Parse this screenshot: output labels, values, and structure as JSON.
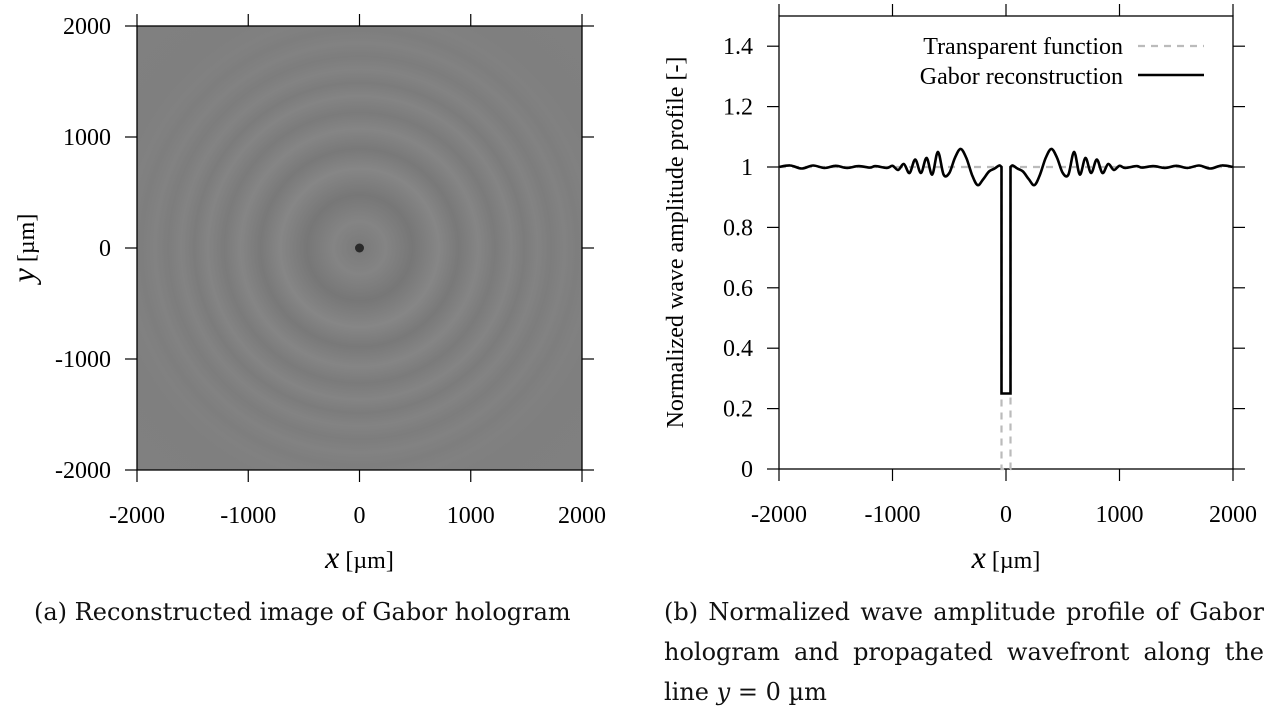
{
  "chart_data": [
    {
      "type": "heatmap",
      "xlabel_var": "x",
      "xlabel_unit": "[µm]",
      "ylabel_var": "y",
      "ylabel_unit": "[µm]",
      "xlim": [
        -2000,
        2000
      ],
      "ylim": [
        -2000,
        2000
      ],
      "xticks": [
        -2000,
        -1000,
        0,
        1000,
        2000
      ],
      "yticks": [
        -2000,
        -1000,
        0,
        1000,
        2000
      ],
      "xtick_labels": [
        "-2000",
        "-1000",
        "0",
        "1000",
        "2000"
      ],
      "ytick_labels": [
        "-2000",
        "-1000",
        "0",
        "1000",
        "2000"
      ],
      "colors": {
        "background": "#808080",
        "dot": "#2a2a2a"
      },
      "object": {
        "x": 0,
        "y": 0,
        "diameter": 80
      },
      "grid": false
    },
    {
      "type": "line",
      "xlabel_var": "x",
      "xlabel_unit": "[µm]",
      "ylabel": "Normalized wave amplitude profile [-]",
      "xlim": [
        -2000,
        2000
      ],
      "ylim": [
        0,
        1.5
      ],
      "xticks": [
        -2000,
        -1000,
        0,
        1000,
        2000
      ],
      "yticks": [
        0,
        0.2,
        0.4,
        0.6,
        0.8,
        1,
        1.2,
        1.4
      ],
      "xtick_labels": [
        "-2000",
        "-1000",
        "0",
        "1000",
        "2000"
      ],
      "ytick_labels": [
        "0",
        "0.2",
        "0.4",
        "0.6",
        "0.8",
        "1",
        "1.2",
        "1.4"
      ],
      "legend_position": "top-right",
      "grid": false,
      "series": [
        {
          "name": "Transparent function",
          "style": "dashed",
          "color": "#bbbbbb",
          "points": [
            [
              -2000,
              1
            ],
            [
              -40,
              1
            ],
            [
              -40,
              0
            ],
            [
              40,
              0
            ],
            [
              40,
              1
            ],
            [
              2000,
              1
            ]
          ]
        },
        {
          "name": "Gabor reconstruction",
          "style": "solid",
          "color": "#000000",
          "points": [
            [
              -2000,
              1.0
            ],
            [
              -1900,
              1.005
            ],
            [
              -1800,
              0.995
            ],
            [
              -1700,
              1.005
            ],
            [
              -1600,
              0.997
            ],
            [
              -1500,
              1.004
            ],
            [
              -1400,
              0.997
            ],
            [
              -1300,
              1.003
            ],
            [
              -1200,
              0.998
            ],
            [
              -1150,
              1.003
            ],
            [
              -1050,
              0.997
            ],
            [
              -1000,
              1.004
            ],
            [
              -950,
              0.99
            ],
            [
              -900,
              1.01
            ],
            [
              -850,
              0.98
            ],
            [
              -800,
              1.025
            ],
            [
              -750,
              0.98
            ],
            [
              -700,
              1.03
            ],
            [
              -650,
              0.975
            ],
            [
              -600,
              1.05
            ],
            [
              -550,
              0.975
            ],
            [
              -500,
              0.98
            ],
            [
              -450,
              1.03
            ],
            [
              -400,
              1.06
            ],
            [
              -350,
              1.03
            ],
            [
              -300,
              0.975
            ],
            [
              -250,
              0.94
            ],
            [
              -200,
              0.96
            ],
            [
              -150,
              0.985
            ],
            [
              -100,
              0.995
            ],
            [
              -60,
              1.005
            ],
            [
              -40,
              1.0
            ],
            [
              -40,
              0.25
            ],
            [
              40,
              0.25
            ],
            [
              40,
              1.0
            ],
            [
              60,
              1.005
            ],
            [
              100,
              0.995
            ],
            [
              150,
              0.985
            ],
            [
              200,
              0.96
            ],
            [
              250,
              0.94
            ],
            [
              300,
              0.975
            ],
            [
              350,
              1.03
            ],
            [
              400,
              1.06
            ],
            [
              450,
              1.03
            ],
            [
              500,
              0.98
            ],
            [
              550,
              0.975
            ],
            [
              600,
              1.05
            ],
            [
              650,
              0.975
            ],
            [
              700,
              1.03
            ],
            [
              750,
              0.98
            ],
            [
              800,
              1.025
            ],
            [
              850,
              0.98
            ],
            [
              900,
              1.01
            ],
            [
              950,
              0.99
            ],
            [
              1000,
              1.004
            ],
            [
              1050,
              0.997
            ],
            [
              1150,
              1.003
            ],
            [
              1200,
              0.998
            ],
            [
              1300,
              1.003
            ],
            [
              1400,
              0.997
            ],
            [
              1500,
              1.004
            ],
            [
              1600,
              0.997
            ],
            [
              1700,
              1.005
            ],
            [
              1800,
              0.995
            ],
            [
              1900,
              1.005
            ],
            [
              2000,
              1.0
            ]
          ]
        }
      ]
    }
  ],
  "captions": {
    "a": "(a) Reconstructed image of Gabor hologram",
    "b_text": "(b) Normalized wave amplitude profile of Gabor hologram and propagated wavefront along the line ",
    "b_math": "y",
    "b_rest": " = 0 µm"
  }
}
